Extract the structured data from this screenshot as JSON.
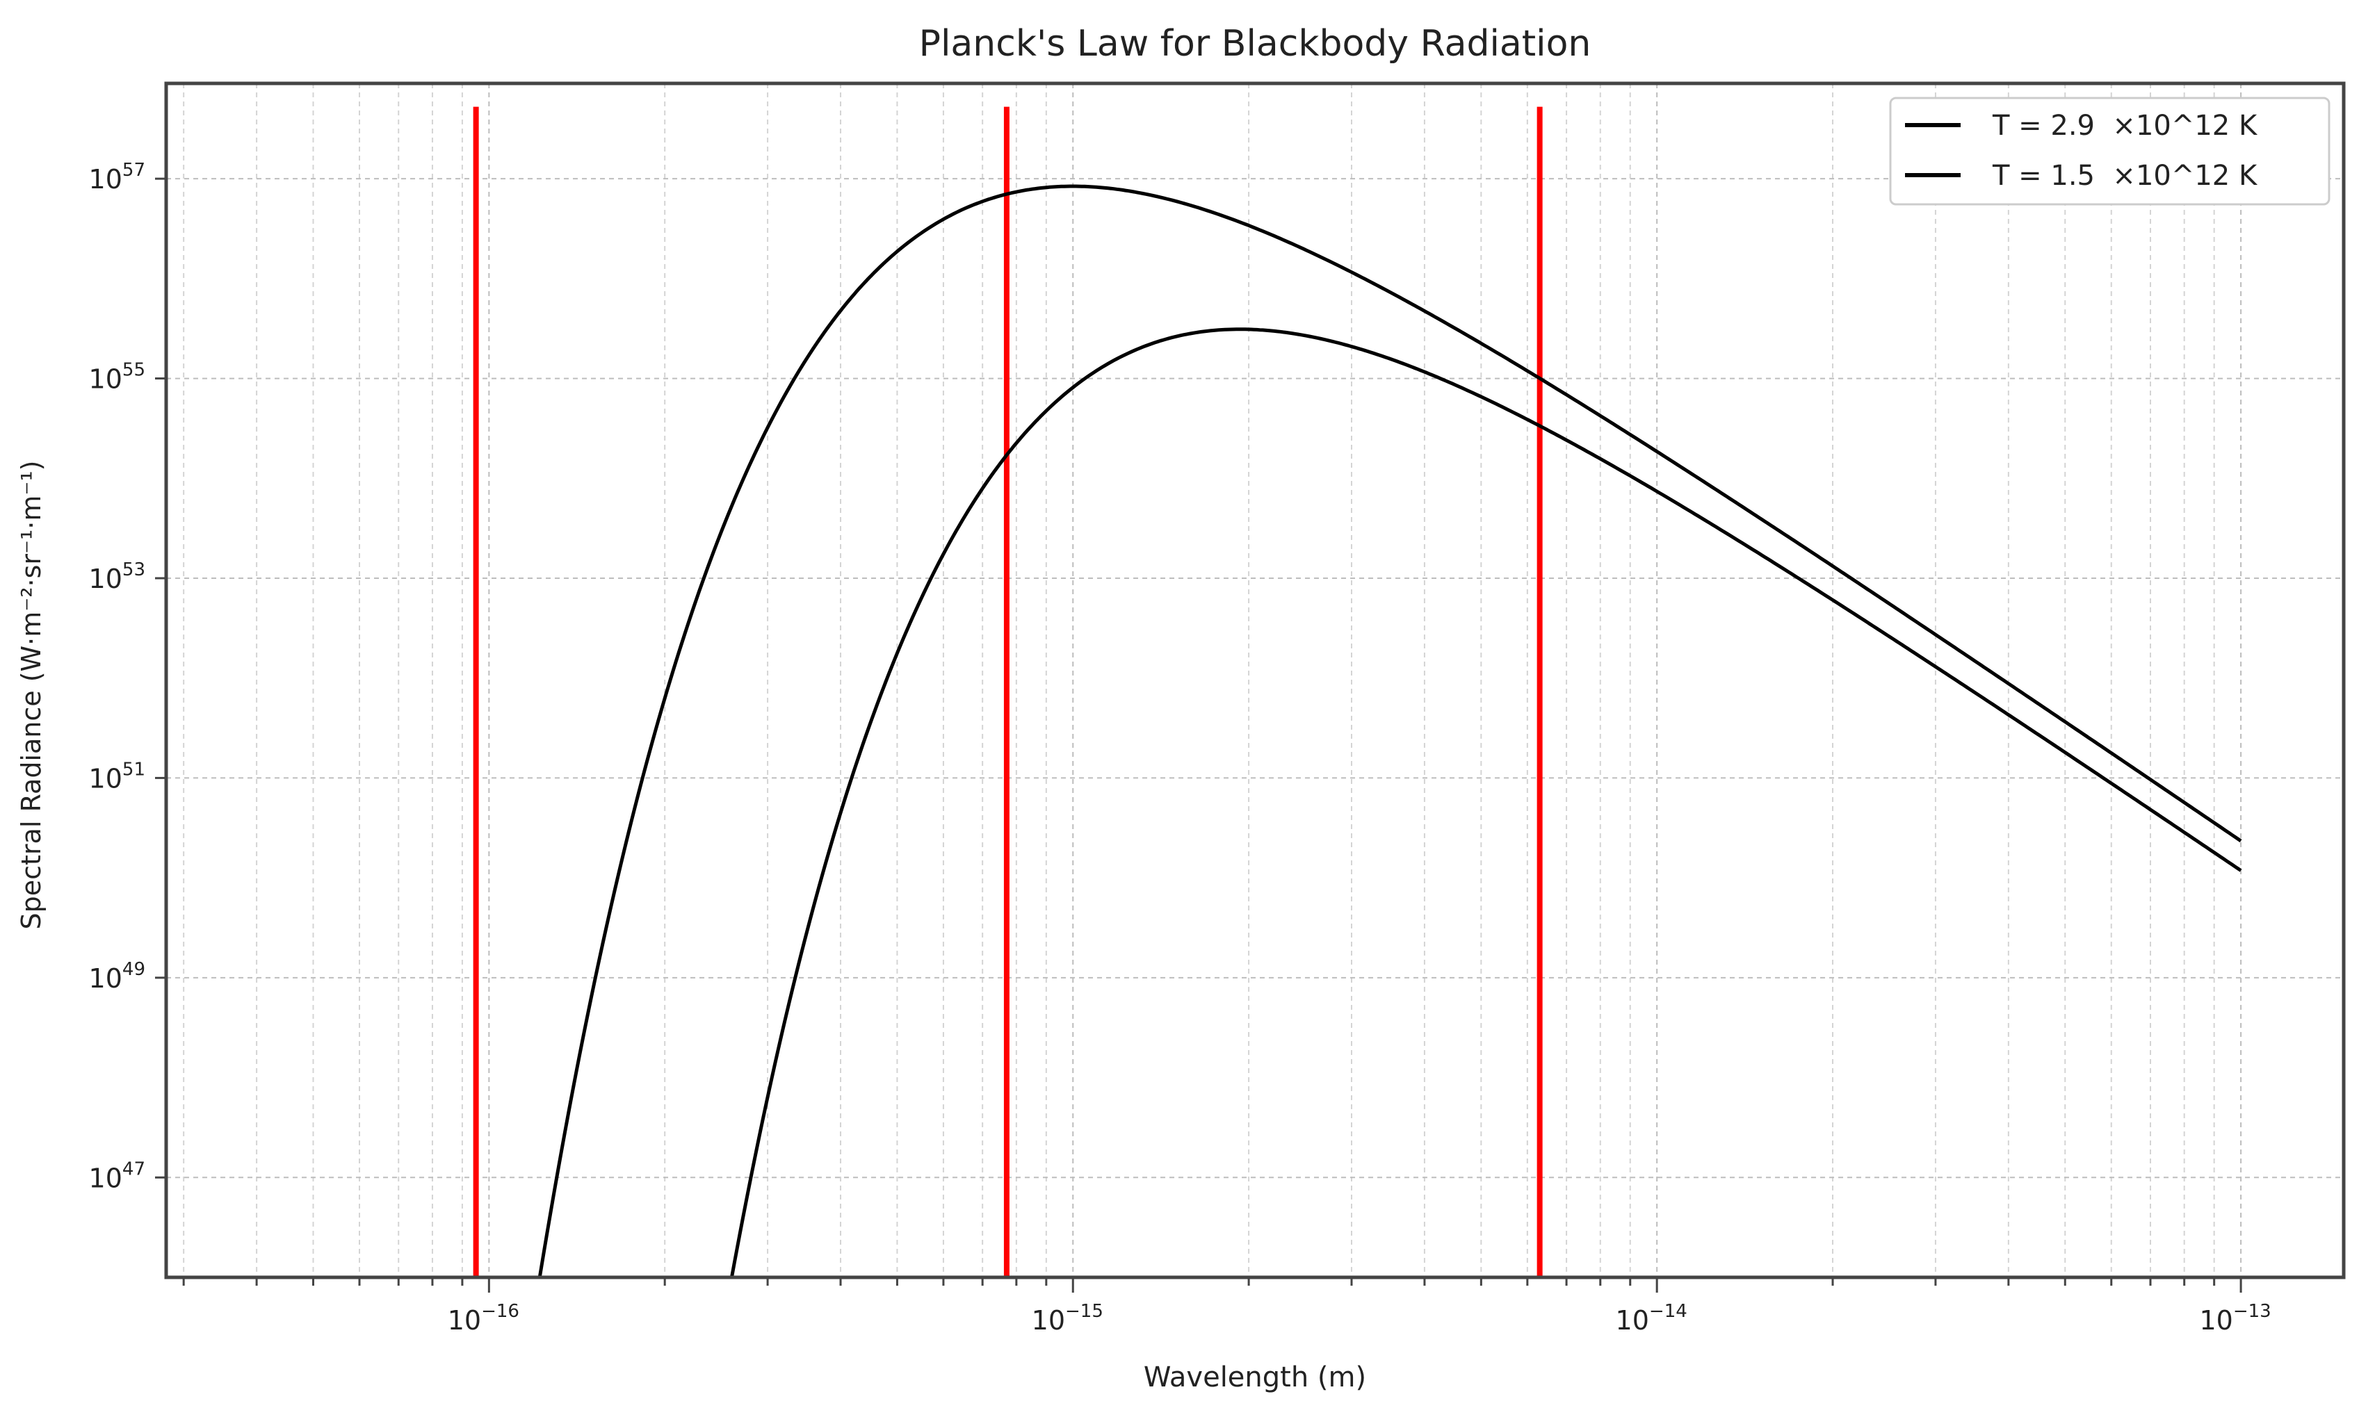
{
  "chart_data": {
    "type": "line",
    "title": "Planck's Law for Blackbody Radiation",
    "xlabel": "Wavelength (m)",
    "ylabel": "Spectral Radiance (W·m⁻²·sr⁻¹·m⁻¹)",
    "xscale": "log",
    "yscale": "log",
    "xlim": [
      2.8e-17,
      1.5e-13
    ],
    "ylim": [
      1e+46,
      9e+57
    ],
    "x_range_of_curves": [
      1e-17,
      1e-13
    ],
    "grid": true,
    "legend_position": "top-right",
    "xticks": [
      {
        "exp": -16,
        "label": "10",
        "sup": "−16"
      },
      {
        "exp": -15,
        "label": "10",
        "sup": "−15"
      },
      {
        "exp": -14,
        "label": "10",
        "sup": "−14"
      },
      {
        "exp": -13,
        "label": "10",
        "sup": "−13"
      }
    ],
    "yticks": [
      {
        "exp": 57,
        "label": "10",
        "sup": "57"
      },
      {
        "exp": 55,
        "label": "10",
        "sup": "55"
      },
      {
        "exp": 53,
        "label": "10",
        "sup": "53"
      },
      {
        "exp": 51,
        "label": "10",
        "sup": "51"
      },
      {
        "exp": 49,
        "label": "10",
        "sup": "49"
      },
      {
        "exp": 47,
        "label": "10",
        "sup": "47"
      }
    ],
    "series": [
      {
        "name": "T = 2.9  ×10^12 K",
        "temperature_K": 2900000000000.0,
        "color": "#000000",
        "model": "planck"
      },
      {
        "name": "T = 1.5  ×10^12 K",
        "temperature_K": 1500000000000.0,
        "color": "#000000",
        "model": "planck"
      }
    ],
    "vertical_lines": [
      {
        "x": 9.5e-17,
        "color": "#ff0000"
      },
      {
        "x": 7.7e-16,
        "color": "#ff0000"
      },
      {
        "x": 6.3e-15,
        "color": "#ff0000"
      }
    ]
  }
}
